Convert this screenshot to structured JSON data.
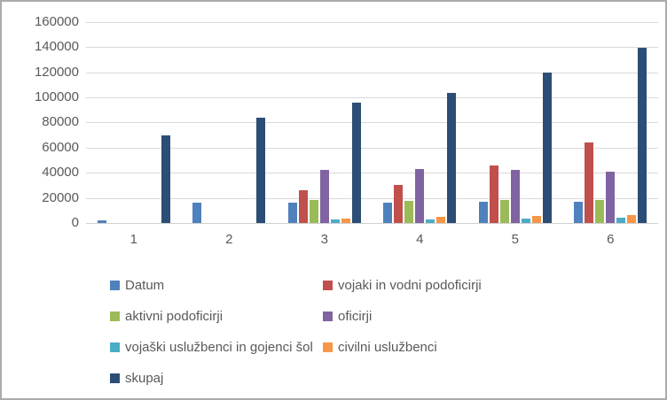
{
  "chart_data": {
    "type": "bar",
    "title": "",
    "xlabel": "",
    "ylabel": "",
    "categories": [
      "1",
      "2",
      "3",
      "4",
      "5",
      "6"
    ],
    "series": [
      {
        "name": "Datum",
        "color": "#4F81BD",
        "values": [
          2000,
          16000,
          16500,
          16500,
          17000,
          17000
        ]
      },
      {
        "name": "vojaki in vodni podoficirji",
        "color": "#C0504D",
        "values": [
          0,
          0,
          26000,
          30500,
          45500,
          64000
        ]
      },
      {
        "name": "aktivni podoficirji",
        "color": "#9BBB59",
        "values": [
          0,
          0,
          18000,
          17500,
          18000,
          18500
        ]
      },
      {
        "name": "oficirji",
        "color": "#8064A2",
        "values": [
          0,
          0,
          42500,
          43000,
          42000,
          41000
        ]
      },
      {
        "name": "vojaški uslužbenci in gojenci šol",
        "color": "#4BACC6",
        "values": [
          0,
          0,
          2500,
          2500,
          3200,
          4200
        ]
      },
      {
        "name": "civilni uslužbenci",
        "color": "#F79646",
        "values": [
          0,
          0,
          3500,
          5000,
          5800,
          6500
        ]
      },
      {
        "name": "skupaj",
        "color": "#2C4D75",
        "values": [
          70000,
          84000,
          96000,
          103500,
          120000,
          139500
        ]
      }
    ],
    "ylim": [
      0,
      160000
    ],
    "ytick_step": 20000,
    "ytick_labels": [
      "0",
      "20000",
      "40000",
      "60000",
      "80000",
      "100000",
      "120000",
      "140000",
      "160000"
    ],
    "grid": true,
    "legend_position": "bottom",
    "legend_rows": [
      [
        0,
        1
      ],
      [
        2,
        3
      ],
      [
        4,
        5
      ],
      [
        6
      ]
    ],
    "colors": {
      "axis_text": "#595959",
      "gridline": "#d9d9d9",
      "frame_border": "#ababab",
      "background": "#ffffff"
    }
  }
}
